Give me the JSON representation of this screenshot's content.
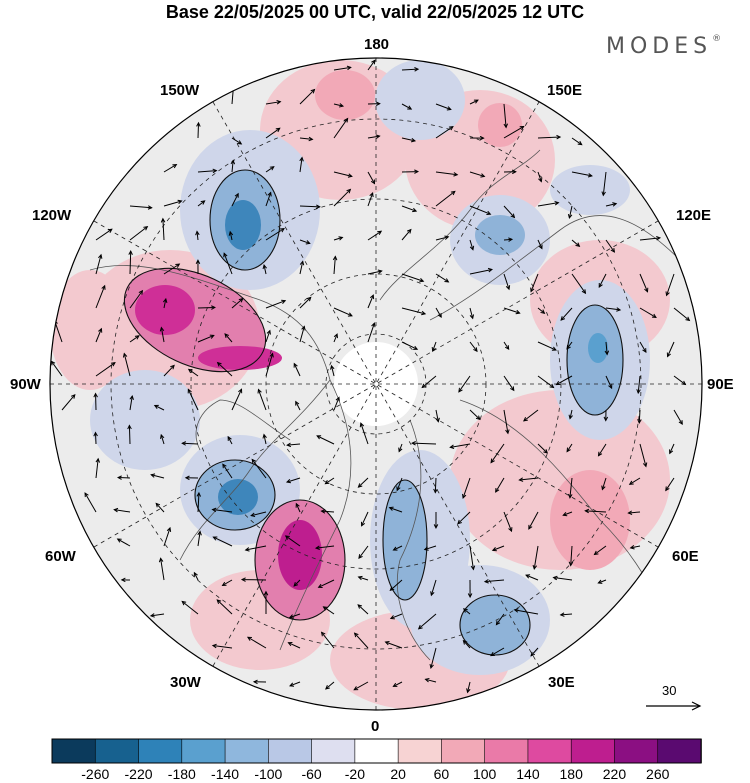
{
  "title": "Base 22/05/2025 00 UTC, valid 22/05/2025 12 UTC",
  "brand": "MODES",
  "brand_mark": "®",
  "longitude_labels": {
    "top": "180",
    "top_left": "150W",
    "top_right": "150E",
    "upper_left": "120W",
    "upper_right": "120E",
    "left": "90W",
    "right": "90E",
    "lower_left": "60W",
    "lower_right": "60E",
    "bottom_left": "30W",
    "bottom_right": "30E",
    "bottom": "0"
  },
  "vector_scale": {
    "label": "30"
  },
  "colorbar": {
    "labels": [
      "-260",
      "-220",
      "-180",
      "-140",
      "-100",
      "-60",
      "-20",
      "20",
      "60",
      "100",
      "140",
      "180",
      "220",
      "260"
    ],
    "colors": [
      "#0b3a5c",
      "#17618f",
      "#2e82b8",
      "#5aa0cf",
      "#8fb7dd",
      "#b9c8e6",
      "#dedff0",
      "#ffffff",
      "#f7d3d3",
      "#f2a9b7",
      "#ea7aa8",
      "#de4aa0",
      "#be1e8f",
      "#8b0f82",
      "#5a0a70"
    ]
  },
  "anomaly_colors": {
    "strong_positive": "#cf2f97",
    "positive": "#e27fae",
    "weak_positive": "#f3c9cf",
    "strong_negative": "#3e86bb",
    "negative": "#8fb3d8",
    "weak_negative": "#cfd6ea",
    "neutral": "#ececec"
  }
}
